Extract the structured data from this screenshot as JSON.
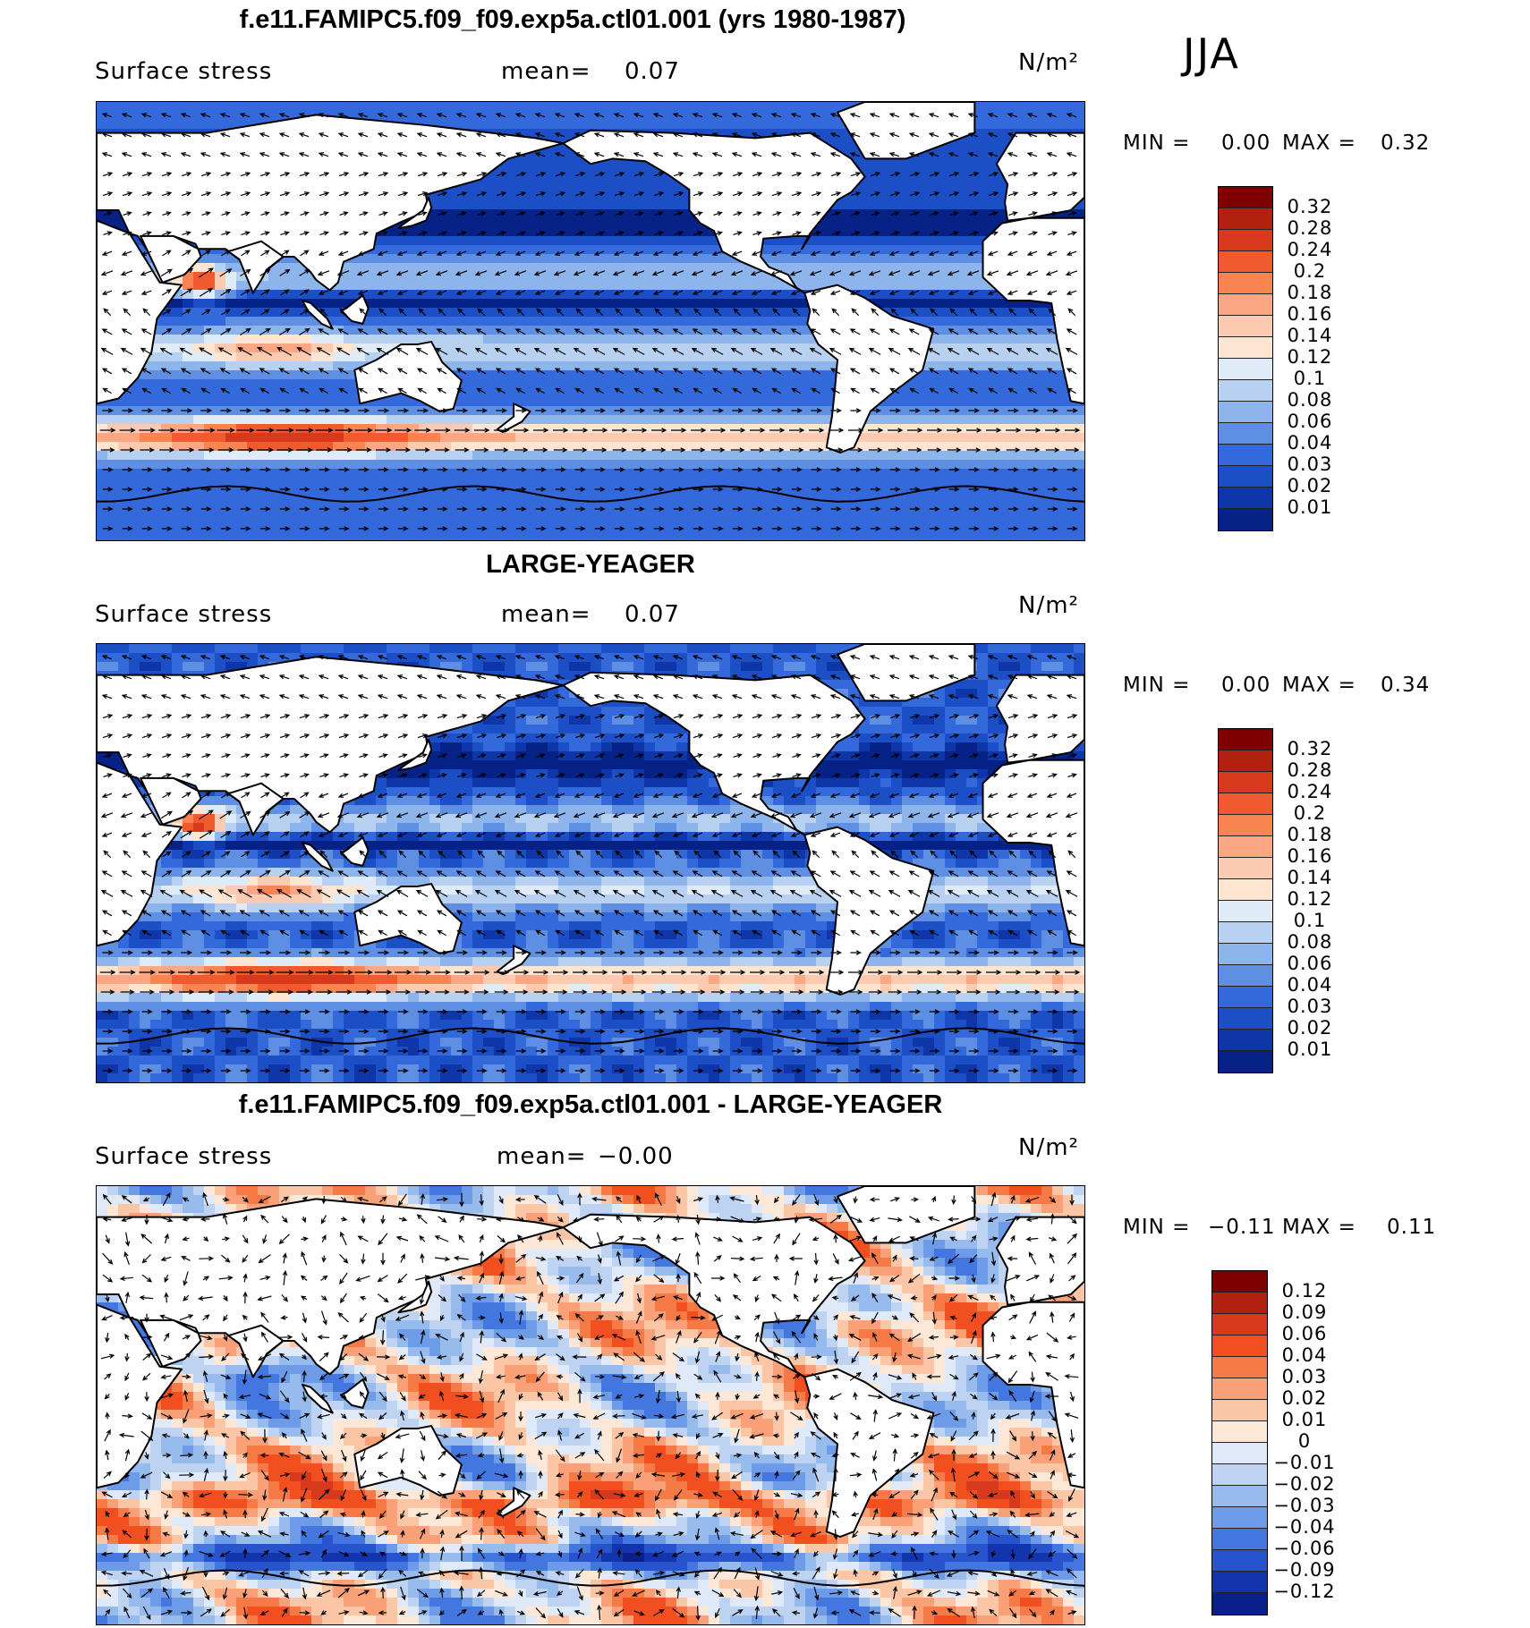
{
  "season": "JJA",
  "panels": [
    {
      "title": "f.e11.FAMIPC5.f09_f09.exp5a.ctl01.001 (yrs 1980-1987)",
      "variable": "Surface stress",
      "mean_label": "mean=",
      "mean_value": "0.07",
      "units": "N/m²",
      "min_label": "MIN =",
      "min_value": "0.00",
      "max_label": "MAX =",
      "max_value": "0.32",
      "field_type": "magnitude",
      "colorbar": {
        "labels": [
          "0.32",
          "0.28",
          "0.24",
          "0.2",
          "0.18",
          "0.16",
          "0.14",
          "0.12",
          "0.1",
          "0.08",
          "0.06",
          "0.04",
          "0.03",
          "0.02",
          "0.01"
        ],
        "colors": [
          "#7f0000",
          "#b2210f",
          "#d7391d",
          "#ef5b2f",
          "#f88451",
          "#fba784",
          "#fccab0",
          "#fde5d2",
          "#dfebf7",
          "#b9d1f1",
          "#8db4eb",
          "#5e8fe3",
          "#3469dc",
          "#1c4ec5",
          "#0f36a8",
          "#072286"
        ]
      }
    },
    {
      "title": "LARGE-YEAGER",
      "variable": "Surface stress",
      "mean_label": "mean=",
      "mean_value": "0.07",
      "units": "N/m²",
      "min_label": "MIN =",
      "min_value": "0.00",
      "max_label": "MAX =",
      "max_value": "0.34",
      "field_type": "magnitude",
      "colorbar": {
        "labels": [
          "0.32",
          "0.28",
          "0.24",
          "0.2",
          "0.18",
          "0.16",
          "0.14",
          "0.12",
          "0.1",
          "0.08",
          "0.06",
          "0.04",
          "0.03",
          "0.02",
          "0.01"
        ],
        "colors": [
          "#7f0000",
          "#b2210f",
          "#d7391d",
          "#ef5b2f",
          "#f88451",
          "#fba784",
          "#fccab0",
          "#fde5d2",
          "#dfebf7",
          "#b9d1f1",
          "#8db4eb",
          "#5e8fe3",
          "#3469dc",
          "#1c4ec5",
          "#0f36a8",
          "#072286"
        ]
      }
    },
    {
      "title": "f.e11.FAMIPC5.f09_f09.exp5a.ctl01.001 - LARGE-YEAGER",
      "variable": "Surface stress",
      "mean_label": "mean=",
      "mean_value": "−0.00",
      "units": "N/m²",
      "min_label": "MIN =",
      "min_value": "−0.11",
      "max_label": "MAX =",
      "max_value": "0.11",
      "field_type": "difference",
      "colorbar": {
        "labels": [
          "0.12",
          "0.09",
          "0.06",
          "0.04",
          "0.03",
          "0.02",
          "0.01",
          "0",
          "−0.01",
          "−0.02",
          "−0.03",
          "−0.04",
          "−0.06",
          "−0.09",
          "−0.12"
        ],
        "colors": [
          "#7f0000",
          "#b2210f",
          "#d7391d",
          "#f24f20",
          "#f67a45",
          "#f9a079",
          "#fbc6a6",
          "#fde8d8",
          "#dfe9f7",
          "#bed3f2",
          "#98bbee",
          "#6e9be8",
          "#4476e0",
          "#2753cc",
          "#1234ad",
          "#0a1f8a"
        ]
      }
    }
  ]
}
